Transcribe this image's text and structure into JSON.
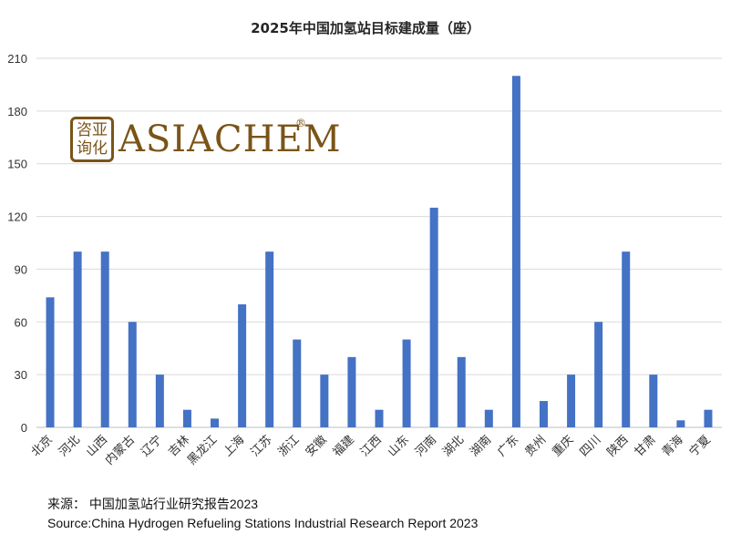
{
  "title": "2025年中国加氢站目标建成量（座）",
  "logo": {
    "cn_line1": "咨亚",
    "cn_line2": "询化",
    "text": "ASIACHEM",
    "reg": "®",
    "color": "#7a5418"
  },
  "source": {
    "line1": "来源：  中国加氢站行业研究报告2023",
    "line2": "Source:China Hydrogen Refueling Stations Industrial Research Report 2023"
  },
  "colors": {
    "bar": "#4472c4",
    "grid": "#d9d9d9",
    "axis": "#bfbfbf"
  },
  "chart_data": {
    "type": "bar",
    "title": "2025年中国加氢站目标建成量（座）",
    "categories": [
      "北京",
      "河北",
      "山西",
      "内蒙古",
      "辽宁",
      "吉林",
      "黑龙江",
      "上海",
      "江苏",
      "浙江",
      "安徽",
      "福建",
      "江西",
      "山东",
      "河南",
      "湖北",
      "湖南",
      "广东",
      "贵州",
      "重庆",
      "四川",
      "陕西",
      "甘肃",
      "青海",
      "宁夏"
    ],
    "values": [
      74,
      100,
      100,
      60,
      30,
      10,
      5,
      70,
      100,
      50,
      30,
      40,
      10,
      50,
      125,
      40,
      10,
      200,
      15,
      30,
      60,
      100,
      30,
      4,
      10
    ],
    "yticks": [
      0,
      30,
      60,
      90,
      120,
      150,
      180,
      210
    ],
    "ylim": [
      0,
      210
    ],
    "grid": true,
    "legend": "none"
  }
}
